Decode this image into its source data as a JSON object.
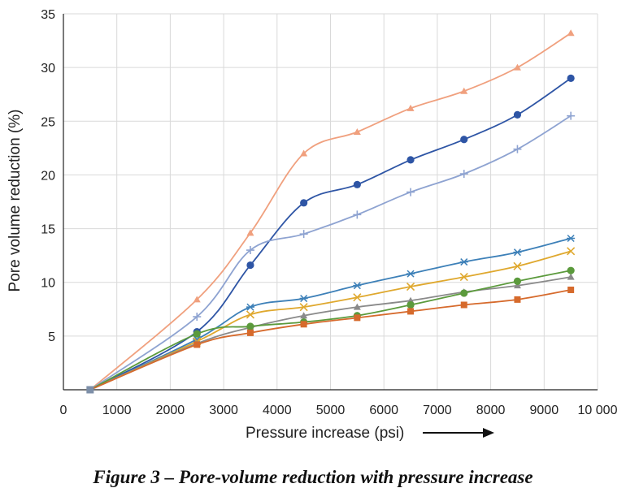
{
  "chart_data": {
    "type": "line",
    "title": "",
    "xlabel": "Pressure increase (psi)",
    "ylabel": "Pore volume reduction (%)",
    "xlim": [
      0,
      10000
    ],
    "ylim": [
      0,
      35
    ],
    "xticks": [
      0,
      1000,
      2000,
      3000,
      4000,
      5000,
      6000,
      7000,
      8000,
      9000,
      10000
    ],
    "xtick_labels": [
      "0",
      "1000",
      "2000",
      "3000",
      "4000",
      "5000",
      "6000",
      "7000",
      "8000",
      "9000",
      "10 000"
    ],
    "yticks": [
      5,
      10,
      15,
      20,
      25,
      30,
      35
    ],
    "ytick_labels": [
      "5",
      "10",
      "15",
      "20",
      "25",
      "30",
      "35"
    ],
    "grid": true,
    "x": [
      500,
      2500,
      3500,
      4500,
      5500,
      6500,
      7500,
      8500,
      9500
    ],
    "series": [
      {
        "name": "",
        "color": "#f0a07e",
        "marker": "triangle",
        "values": [
          0,
          8.4,
          14.6,
          22,
          24,
          26.2,
          27.8,
          30,
          33.2
        ]
      },
      {
        "name": "",
        "color": "#2e55a5",
        "marker": "circle",
        "values": [
          0,
          5.4,
          11.6,
          17.4,
          19.1,
          21.4,
          23.3,
          25.6,
          29
        ]
      },
      {
        "name": "",
        "color": "#8ea3d1",
        "marker": "plus",
        "values": [
          0,
          6.8,
          13,
          14.5,
          16.3,
          18.4,
          20.1,
          22.4,
          25.5
        ]
      },
      {
        "name": "",
        "color": "#3d80b8",
        "marker": "star",
        "values": [
          0,
          4.7,
          7.7,
          8.5,
          9.7,
          10.8,
          11.9,
          12.8,
          14.1
        ]
      },
      {
        "name": "",
        "color": "#dfa82e",
        "marker": "x",
        "values": [
          0,
          4.5,
          7,
          7.7,
          8.6,
          9.6,
          10.5,
          11.5,
          12.9
        ]
      },
      {
        "name": "",
        "color": "#8a8a8a",
        "marker": "triangle",
        "values": [
          0,
          4.3,
          5.8,
          6.9,
          7.7,
          8.3,
          9.1,
          9.7,
          10.5
        ]
      },
      {
        "name": "",
        "color": "#5b9a3c",
        "marker": "circle",
        "values": [
          0,
          5.2,
          5.9,
          6.3,
          6.9,
          7.9,
          9,
          10.1,
          11.1
        ]
      },
      {
        "name": "",
        "color": "#d66a2c",
        "marker": "square",
        "values": [
          0,
          4.2,
          5.3,
          6.1,
          6.7,
          7.3,
          7.9,
          8.4,
          9.3
        ]
      }
    ]
  },
  "caption": "Figure 3 – Pore-volume reduction with pressure increase"
}
